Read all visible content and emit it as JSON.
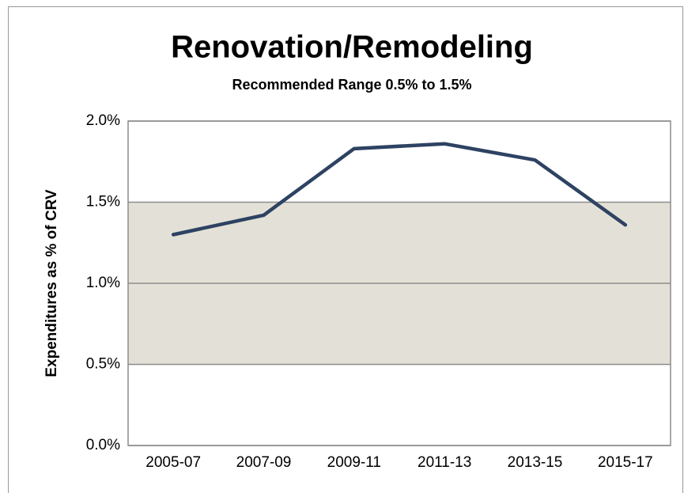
{
  "chart_data": {
    "type": "line",
    "title": "Renovation/Remodeling",
    "subtitle": "Recommended Range 0.5% to 1.5%",
    "y_label": "Expenditures as % of CRV",
    "categories": [
      "2005-07",
      "2007-09",
      "2009-11",
      "2011-13",
      "2013-15",
      "2015-17"
    ],
    "series": [
      {
        "name": "Renovation/Remodeling",
        "color": "#2e4262",
        "values": [
          1.3,
          1.42,
          1.83,
          1.86,
          1.76,
          1.36
        ]
      }
    ],
    "shaded_range": {
      "from": 0.5,
      "to": 1.5,
      "color": "#e3e1d7"
    },
    "ylim": [
      0,
      2
    ],
    "yticks": [
      {
        "value": 0,
        "label": "0.0%"
      },
      {
        "value": 0.5,
        "label": "0.5%"
      },
      {
        "value": 1,
        "label": "1.0%"
      },
      {
        "value": 1.5,
        "label": "1.5%"
      },
      {
        "value": 2,
        "label": "2.0%"
      }
    ],
    "grid": true
  }
}
